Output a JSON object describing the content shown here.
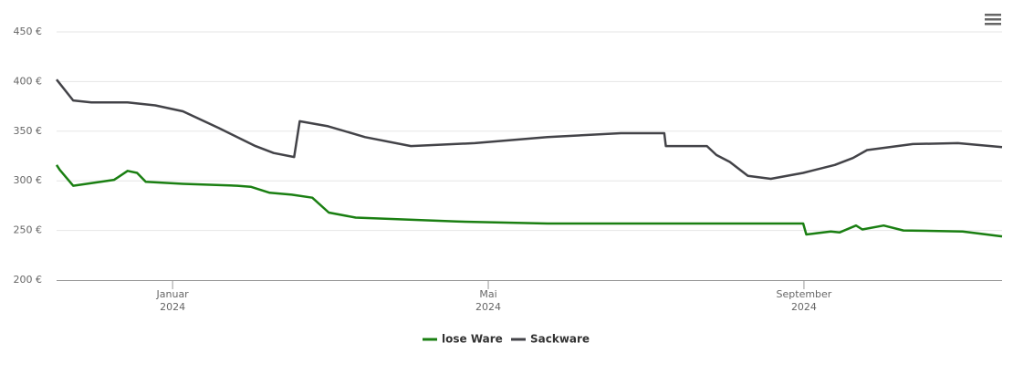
{
  "chart_data": {
    "type": "line",
    "x": [
      -1.47,
      -1.43,
      -1.26,
      -1.03,
      -0.74,
      -0.57,
      -0.45,
      -0.34,
      -0.22,
      0.13,
      0.59,
      0.82,
      0.99,
      1.05,
      1.23,
      1.28,
      1.51,
      1.54,
      1.61,
      1.77,
      1.97,
      1.98,
      2.32,
      2.44,
      3.02,
      3.6,
      3.83,
      4.75,
      5.68,
      6.23,
      6.25,
      6.77,
      6.89,
      7.06,
      7.29,
      7.58,
      7.99,
      8.03,
      8.34,
      8.39,
      8.45,
      8.62,
      8.66,
      8.74,
      8.8,
      9.01,
      9.26,
      9.38,
      9.95,
      10.01,
      10.51
    ],
    "series": [
      {
        "name": "lose Ware",
        "color": "#1a7f12",
        "values": [
          316,
          311,
          295,
          null,
          301,
          310,
          308,
          299,
          null,
          297,
          null,
          295,
          294,
          null,
          288,
          null,
          286,
          null,
          null,
          283,
          null,
          268,
          263,
          null,
          null,
          259,
          null,
          257,
          null,
          null,
          null,
          null,
          null,
          null,
          null,
          null,
          257,
          246,
          249,
          null,
          248,
          null,
          255,
          251,
          null,
          255,
          250,
          null,
          null,
          249,
          244
        ]
      },
      {
        "name": "Sackware",
        "color": "#434348",
        "values": [
          402,
          null,
          381,
          379,
          null,
          379,
          null,
          null,
          376,
          370,
          353,
          null,
          null,
          335,
          null,
          328,
          null,
          324,
          360,
          null,
          355,
          null,
          null,
          344,
          335,
          null,
          338,
          344,
          348,
          348,
          335,
          335,
          326,
          319,
          305,
          302,
          308,
          null,
          null,
          316,
          null,
          323,
          null,
          null,
          331,
          null,
          null,
          337,
          338,
          null,
          334
        ]
      }
    ],
    "xlim": [
      -1.47,
      10.51
    ],
    "xticks": [
      {
        "value": 0,
        "label": "Januar\n2024"
      },
      {
        "value": 4,
        "label": "Mai\n2024"
      },
      {
        "value": 8,
        "label": "September\n2024"
      }
    ],
    "ylim": [
      200,
      450
    ],
    "yticks": [
      {
        "value": 200,
        "label": "200 €"
      },
      {
        "value": 250,
        "label": "250 €"
      },
      {
        "value": 300,
        "label": "300 €"
      },
      {
        "value": 350,
        "label": "350 €"
      },
      {
        "value": 400,
        "label": "400 €"
      },
      {
        "value": 450,
        "label": "450 €"
      }
    ],
    "grid": true,
    "legend": "bottom"
  }
}
